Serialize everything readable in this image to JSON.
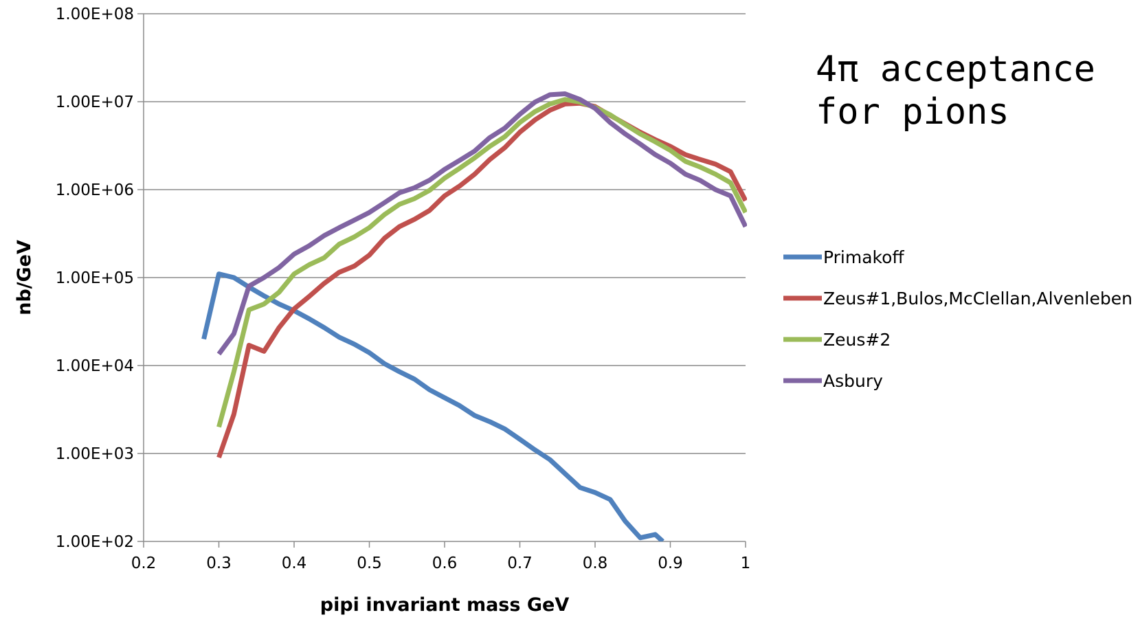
{
  "chart_data": {
    "type": "line",
    "title": "",
    "xlabel": "pipi invariant mass GeV",
    "ylabel": "nb/GeV",
    "yscale": "log",
    "xlim": [
      0.2,
      1.0
    ],
    "ylim": [
      100,
      100000000
    ],
    "x_ticks": [
      "0.2",
      "0.3",
      "0.4",
      "0.5",
      "0.6",
      "0.7",
      "0.8",
      "0.9",
      "1"
    ],
    "x_tick_values": [
      0.2,
      0.3,
      0.4,
      0.5,
      0.6,
      0.7,
      0.8,
      0.9,
      1.0
    ],
    "y_ticks": [
      "1.00E+02",
      "1.00E+03",
      "1.00E+04",
      "1.00E+05",
      "1.00E+06",
      "1.00E+07",
      "1.00E+08"
    ],
    "y_tick_values": [
      100,
      1000,
      10000,
      100000,
      1000000,
      10000000,
      100000000
    ],
    "grid": "horizontal",
    "legend_position": "right",
    "annotation": [
      "4π acceptance",
      "for pions"
    ],
    "series": [
      {
        "name": "Primakoff",
        "color": "#4f81bd",
        "x": [
          0.28,
          0.3,
          0.32,
          0.34,
          0.36,
          0.38,
          0.4,
          0.42,
          0.44,
          0.46,
          0.48,
          0.5,
          0.52,
          0.54,
          0.56,
          0.58,
          0.6,
          0.62,
          0.64,
          0.66,
          0.68,
          0.7,
          0.72,
          0.74,
          0.76,
          0.78,
          0.8,
          0.82,
          0.84,
          0.86,
          0.88,
          0.89
        ],
        "y": [
          20000,
          110000,
          100000,
          78000,
          62000,
          50000,
          42000,
          34000,
          27000,
          21000,
          17500,
          14000,
          10500,
          8500,
          7000,
          5300,
          4300,
          3500,
          2700,
          2300,
          1900,
          1450,
          1100,
          850,
          590,
          410,
          360,
          300,
          170,
          110,
          120,
          100
        ]
      },
      {
        "name": "Zeus#1,Bulos,McClellan,Alvenleben",
        "color": "#c0504d",
        "x": [
          0.3,
          0.32,
          0.34,
          0.36,
          0.38,
          0.4,
          0.42,
          0.44,
          0.46,
          0.48,
          0.5,
          0.52,
          0.54,
          0.56,
          0.58,
          0.6,
          0.62,
          0.64,
          0.66,
          0.68,
          0.7,
          0.72,
          0.74,
          0.76,
          0.78,
          0.8,
          0.82,
          0.84,
          0.86,
          0.88,
          0.9,
          0.92,
          0.94,
          0.96,
          0.98,
          1.0
        ],
        "y": [
          900,
          2800,
          17000,
          14500,
          27000,
          44000,
          61000,
          86000,
          115000,
          135000,
          180000,
          280000,
          380000,
          460000,
          580000,
          850000,
          1100000,
          1500000,
          2200000,
          3000000,
          4500000,
          6200000,
          8000000,
          9400000,
          9600000,
          8800000,
          7000000,
          5600000,
          4500000,
          3700000,
          3100000,
          2500000,
          2200000,
          1950000,
          1600000,
          750000
        ]
      },
      {
        "name": "Zeus#2",
        "color": "#9bbb59",
        "x": [
          0.3,
          0.32,
          0.34,
          0.36,
          0.38,
          0.4,
          0.42,
          0.44,
          0.46,
          0.48,
          0.5,
          0.52,
          0.54,
          0.56,
          0.58,
          0.6,
          0.62,
          0.64,
          0.66,
          0.68,
          0.7,
          0.72,
          0.74,
          0.76,
          0.78,
          0.8,
          0.82,
          0.84,
          0.86,
          0.88,
          0.9,
          0.92,
          0.94,
          0.96,
          0.98,
          1.0
        ],
        "y": [
          2000,
          8500,
          43000,
          50000,
          68000,
          110000,
          140000,
          168000,
          240000,
          290000,
          370000,
          520000,
          680000,
          790000,
          980000,
          1350000,
          1750000,
          2300000,
          3100000,
          4000000,
          5800000,
          7700000,
          9400000,
          10600000,
          9900000,
          8600000,
          7100000,
          5500000,
          4300000,
          3500000,
          2800000,
          2100000,
          1800000,
          1500000,
          1200000,
          550000
        ]
      },
      {
        "name": "Asbury",
        "color": "#8064a2",
        "x": [
          0.3,
          0.32,
          0.34,
          0.36,
          0.38,
          0.4,
          0.42,
          0.44,
          0.46,
          0.48,
          0.5,
          0.52,
          0.54,
          0.56,
          0.58,
          0.6,
          0.62,
          0.64,
          0.66,
          0.68,
          0.7,
          0.72,
          0.74,
          0.76,
          0.78,
          0.8,
          0.82,
          0.84,
          0.86,
          0.88,
          0.9,
          0.92,
          0.94,
          0.96,
          0.98,
          1.0
        ],
        "y": [
          13500,
          23000,
          80000,
          100000,
          130000,
          185000,
          230000,
          300000,
          370000,
          450000,
          550000,
          710000,
          920000,
          1050000,
          1280000,
          1700000,
          2150000,
          2750000,
          3900000,
          5000000,
          7200000,
          9900000,
          12000000,
          12300000,
          10600000,
          8400000,
          5800000,
          4300000,
          3300000,
          2500000,
          2000000,
          1500000,
          1270000,
          1000000,
          850000,
          380000
        ]
      }
    ]
  }
}
